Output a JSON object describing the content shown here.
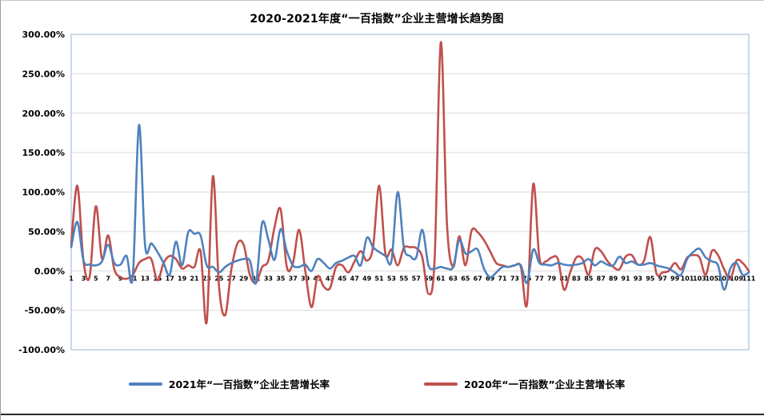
{
  "frame": {
    "background": "#ffffff"
  },
  "chart_data": {
    "type": "line",
    "title": "2020-2021年度“一百指数”企业主营增长趋势图",
    "xlabel": "",
    "ylabel": "",
    "ylim": [
      -100,
      300
    ],
    "y_step": 50,
    "grid": "horizontal",
    "legend_position": "bottom",
    "y_tick_labels": [
      "300.00%",
      "250.00%",
      "200.00%",
      "150.00%",
      "100.00%",
      "50.00%",
      "0.00%",
      "-50.00%",
      "-100.00%"
    ],
    "y_tick_values": [
      300,
      250,
      200,
      150,
      100,
      50,
      0,
      -50,
      -100
    ],
    "x_range": [
      1,
      111
    ],
    "x_tick_labels": [
      "1",
      "3",
      "5",
      "7",
      "9",
      "11",
      "13",
      "15",
      "17",
      "19",
      "21",
      "23",
      "25",
      "27",
      "29",
      "31",
      "33",
      "35",
      "37",
      "39",
      "41",
      "43",
      "45",
      "47",
      "49",
      "51",
      "53",
      "55",
      "57",
      "59",
      "61",
      "63",
      "65",
      "67",
      "69",
      "71",
      "73",
      "75",
      "77",
      "79",
      "81",
      "83",
      "85",
      "87",
      "89",
      "91",
      "93",
      "95",
      "97",
      "99",
      "101",
      "103",
      "105",
      "107",
      "109",
      "111"
    ],
    "series": [
      {
        "name": "2021年“一百指数”企业主营增长率",
        "color": "#4F81BD",
        "unit": "%",
        "values": [
          30,
          62,
          13,
          8,
          7,
          12,
          33,
          10,
          8,
          19,
          -7,
          185,
          32,
          35,
          24,
          10,
          -5,
          37,
          7,
          49,
          47,
          45,
          7,
          5,
          -2,
          5,
          10,
          13,
          15,
          13,
          -15,
          61,
          40,
          14,
          53,
          25,
          7,
          5,
          8,
          0,
          15,
          10,
          3,
          10,
          13,
          17,
          19,
          7,
          42,
          30,
          24,
          19,
          13,
          100,
          30,
          19,
          17,
          52,
          7,
          3,
          5,
          3,
          5,
          39,
          22,
          25,
          27,
          3,
          -8,
          -2,
          5,
          5,
          7,
          7,
          -15,
          27,
          10,
          8,
          7,
          10,
          8,
          7,
          8,
          10,
          15,
          7,
          12,
          8,
          7,
          18,
          10,
          12,
          8,
          8,
          10,
          7,
          5,
          3,
          -2,
          -5,
          15,
          24,
          28,
          17,
          12,
          7,
          -24,
          3,
          10,
          -5,
          -2
        ]
      },
      {
        "name": "2020年“一百指数”企业主营增长率",
        "color": "#C0504D",
        "unit": "%",
        "values": [
          34,
          108,
          12,
          -7,
          82,
          15,
          45,
          2,
          -8,
          -10,
          -5,
          10,
          15,
          15,
          -12,
          10,
          19,
          15,
          3,
          7,
          5,
          25,
          -65,
          120,
          -20,
          -56,
          2,
          35,
          33,
          -5,
          -15,
          5,
          13,
          55,
          78,
          5,
          10,
          52,
          0,
          -46,
          -7,
          -20,
          -22,
          5,
          7,
          -2,
          12,
          25,
          13,
          30,
          108,
          22,
          27,
          7,
          29,
          30,
          29,
          17,
          -29,
          15,
          290,
          60,
          5,
          44,
          7,
          51,
          49,
          39,
          25,
          10,
          7,
          5,
          7,
          5,
          -42,
          110,
          17,
          12,
          17,
          15,
          -24,
          -2,
          17,
          15,
          -5,
          27,
          25,
          13,
          5,
          2,
          18,
          20,
          8,
          13,
          43,
          -3,
          -2,
          0,
          10,
          2,
          17,
          20,
          17,
          -5,
          25,
          20,
          2,
          -10,
          13,
          10,
          0
        ]
      }
    ],
    "colors": {
      "gridline": "#D9D9D9",
      "plot_border": "#A7C0DE",
      "axis_text": "#000000"
    }
  },
  "legend": {
    "items": [
      {
        "label": "2021年“一百指数”企业主营增长率",
        "color": "#4F81BD"
      },
      {
        "label": "2020年“一百指数”企业主营增长率",
        "color": "#C0504D"
      }
    ]
  }
}
